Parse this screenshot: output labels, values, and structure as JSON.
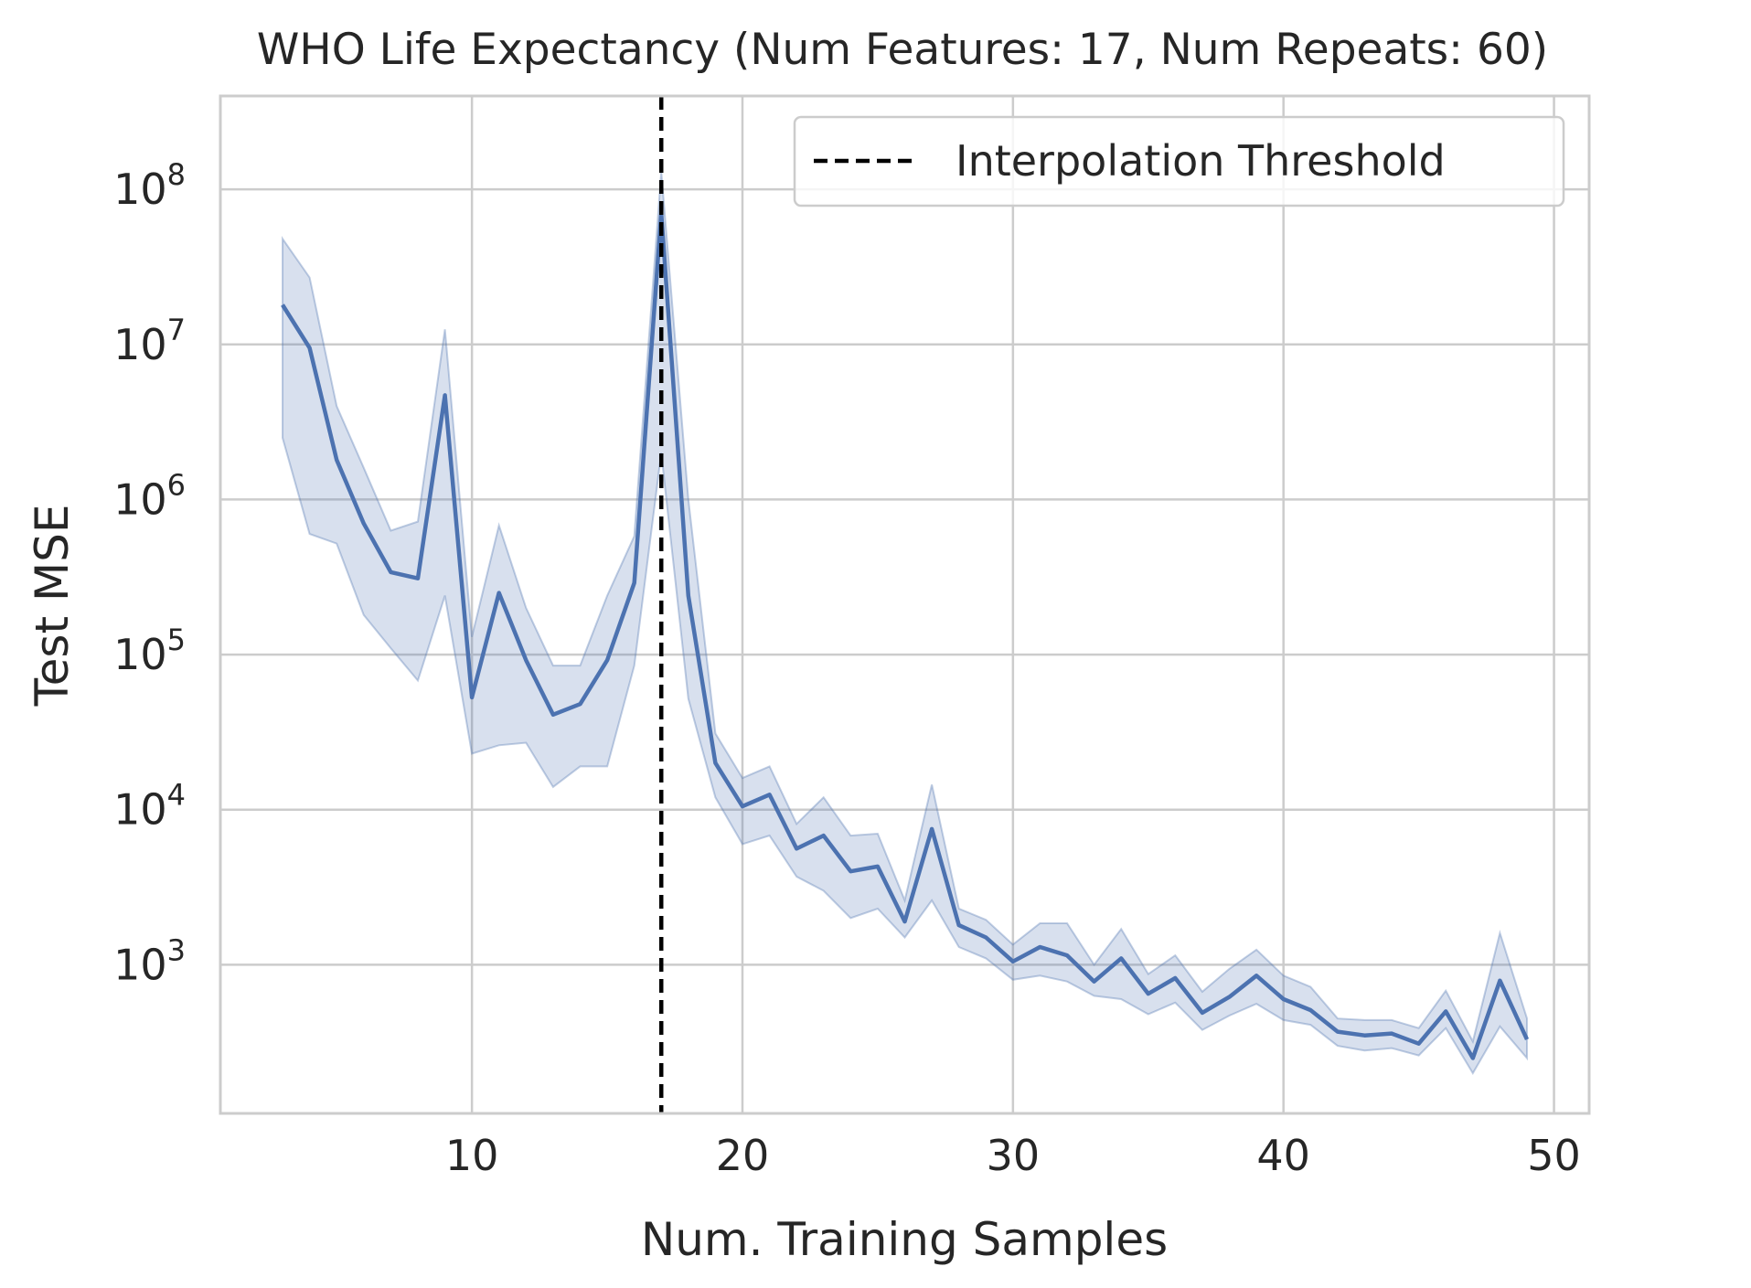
{
  "chart_data": {
    "type": "line",
    "title": "WHO Life Expectancy (Num Features: 17, Num Repeats: 60)",
    "xlabel": "Num. Training Samples",
    "ylabel": "Test MSE",
    "xlim": [
      0.7,
      51.3
    ],
    "ylim": [
      110,
      400000000
    ],
    "yscale": "log",
    "grid": true,
    "x_ticks": [
      10,
      20,
      30,
      40,
      50
    ],
    "x_tick_labels": [
      "10",
      "20",
      "30",
      "40",
      "50"
    ],
    "y_ticks": [
      1000,
      10000,
      100000,
      1000000,
      10000000,
      100000000
    ],
    "y_tick_labels": [
      {
        "base": "10",
        "exp": "3"
      },
      {
        "base": "10",
        "exp": "4"
      },
      {
        "base": "10",
        "exp": "5"
      },
      {
        "base": "10",
        "exp": "6"
      },
      {
        "base": "10",
        "exp": "7"
      },
      {
        "base": "10",
        "exp": "8"
      }
    ],
    "threshold": {
      "x": 17,
      "label": "Interpolation Threshold"
    },
    "legend_position": "top-right",
    "series_color": "#4c72b0",
    "band_color": "#4c72b0",
    "threshold_color": "#000000",
    "series": [
      {
        "x": [
          3,
          4,
          5,
          6,
          7,
          8,
          9,
          10,
          11,
          12,
          13,
          14,
          15,
          16,
          17,
          18,
          19,
          20,
          21,
          22,
          23,
          24,
          25,
          26,
          27,
          28,
          29,
          30,
          31,
          32,
          33,
          34,
          35,
          36,
          37,
          38,
          39,
          40,
          41,
          42,
          43,
          44,
          45,
          46,
          47,
          48,
          49
        ],
        "y": [
          18000000,
          9500000,
          1800000,
          700000,
          340000,
          310000,
          4700000,
          53000,
          250000,
          92000,
          41000,
          48000,
          92000,
          290000,
          70000000,
          240000,
          20000,
          10500,
          12500,
          5600,
          6800,
          4000,
          4300,
          1900,
          7500,
          1800,
          1500,
          1050,
          1300,
          1150,
          780,
          1100,
          650,
          820,
          490,
          620,
          850,
          600,
          510,
          370,
          350,
          360,
          310,
          500,
          250,
          790,
          330
        ],
        "lower": [
          2500000,
          600000,
          520000,
          180000,
          110000,
          68000,
          240000,
          23000,
          26000,
          27000,
          14000,
          19000,
          19000,
          85000,
          2000000,
          52000,
          12000,
          6000,
          6800,
          3700,
          3000,
          2000,
          2300,
          1500,
          2600,
          1300,
          1100,
          800,
          850,
          780,
          630,
          600,
          480,
          570,
          380,
          470,
          560,
          440,
          410,
          300,
          280,
          290,
          260,
          390,
          200,
          400,
          250
        ],
        "upper": [
          48000000,
          27000000,
          4000000,
          1600000,
          630000,
          720000,
          12500000,
          130000,
          680000,
          200000,
          85000,
          85000,
          240000,
          580000,
          130000000,
          1000000,
          31000,
          16000,
          19000,
          8100,
          12000,
          6800,
          7000,
          2600,
          14500,
          2300,
          1950,
          1350,
          1850,
          1850,
          1000,
          1700,
          870,
          1150,
          670,
          940,
          1250,
          850,
          720,
          450,
          440,
          440,
          390,
          680,
          320,
          1600,
          450
        ]
      }
    ]
  }
}
